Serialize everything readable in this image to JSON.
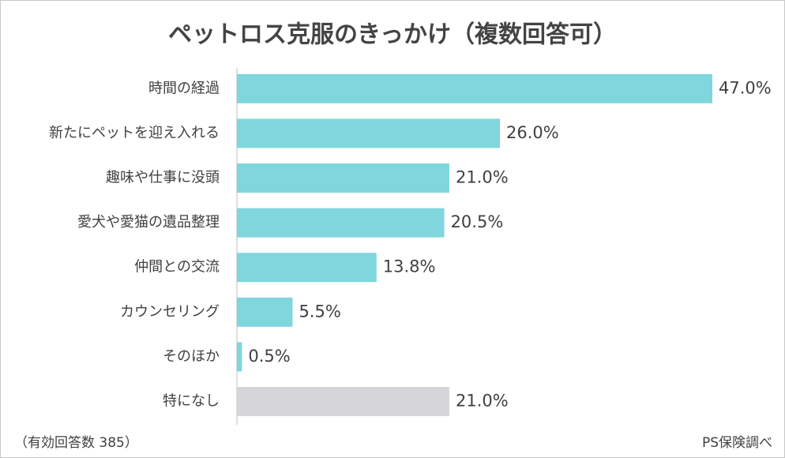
{
  "chart_data": {
    "type": "barh",
    "title": "ペットロス克服のきっかけ（複数回答可）",
    "categories": [
      "時間の経過",
      "新たにペットを迎え入れる",
      "趣味や仕事に没頭",
      "愛犬や愛猫の遺品整理",
      "仲間との交流",
      "カウンセリング",
      "そのほか",
      "特になし"
    ],
    "values": [
      47.0,
      26.0,
      21.0,
      20.5,
      13.8,
      5.5,
      0.5,
      21.0
    ],
    "value_labels": [
      "47.0%",
      "26.0%",
      "21.0%",
      "20.5%",
      "13.8%",
      "5.5%",
      "0.5%",
      "21.0%"
    ],
    "colors": [
      "#80d6dd",
      "#80d6dd",
      "#80d6dd",
      "#80d6dd",
      "#80d6dd",
      "#80d6dd",
      "#80d6dd",
      "#d6d6da"
    ],
    "note": "（有効回答数 385）",
    "source": "PS保険調べ"
  }
}
